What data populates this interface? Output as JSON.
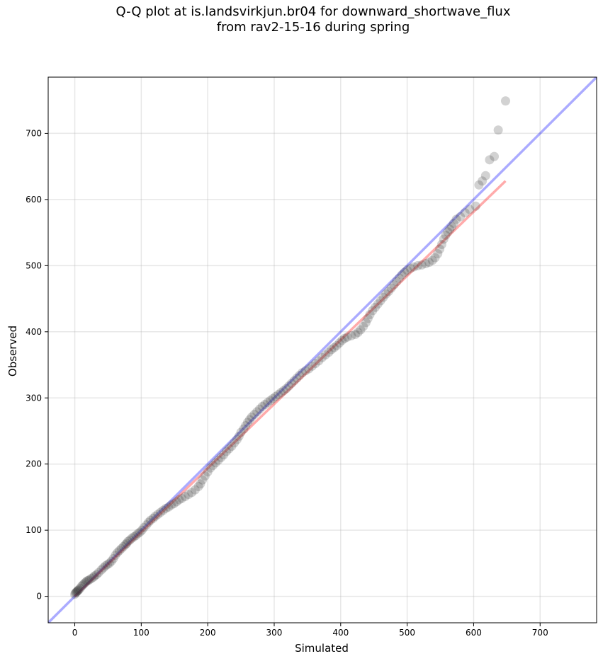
{
  "chart_data": {
    "type": "scatter",
    "title_lines": [
      "Q-Q plot at is.landsvirkjun.br04 for downward_shortwave_flux",
      "from rav2-15-16 during spring"
    ],
    "xlabel": "Simulated",
    "ylabel": "Observed",
    "xlim": [
      -40,
      785
    ],
    "ylim": [
      -40,
      785
    ],
    "xticks": [
      0,
      100,
      200,
      300,
      400,
      500,
      600,
      700
    ],
    "yticks": [
      0,
      100,
      200,
      300,
      400,
      500,
      600,
      700
    ],
    "grid": true,
    "reference_line": {
      "name": "1:1",
      "color": "#0000ff",
      "x": [
        -40,
        785
      ],
      "y": [
        -40,
        785
      ]
    },
    "fit_line": {
      "color": "#ff0000",
      "x": [
        0,
        648
      ],
      "y": [
        0,
        628
      ]
    },
    "point_color": "#333333",
    "points": [
      [
        0,
        3
      ],
      [
        1,
        5
      ],
      [
        2,
        6
      ],
      [
        3,
        7
      ],
      [
        4,
        8
      ],
      [
        5,
        9
      ],
      [
        6,
        10
      ],
      [
        8,
        12
      ],
      [
        10,
        15
      ],
      [
        12,
        17
      ],
      [
        14,
        19
      ],
      [
        16,
        21
      ],
      [
        18,
        23
      ],
      [
        20,
        24
      ],
      [
        22,
        25
      ],
      [
        25,
        27
      ],
      [
        28,
        29
      ],
      [
        30,
        31
      ],
      [
        33,
        33
      ],
      [
        36,
        36
      ],
      [
        40,
        40
      ],
      [
        43,
        43
      ],
      [
        46,
        46
      ],
      [
        49,
        48
      ],
      [
        52,
        50
      ],
      [
        55,
        53
      ],
      [
        58,
        57
      ],
      [
        61,
        62
      ],
      [
        64,
        66
      ],
      [
        67,
        69
      ],
      [
        70,
        72
      ],
      [
        73,
        75
      ],
      [
        76,
        78
      ],
      [
        78,
        80
      ],
      [
        80,
        83
      ],
      [
        83,
        85
      ],
      [
        86,
        88
      ],
      [
        89,
        90
      ],
      [
        92,
        92
      ],
      [
        95,
        95
      ],
      [
        98,
        97
      ],
      [
        101,
        100
      ],
      [
        104,
        104
      ],
      [
        108,
        108
      ],
      [
        111,
        112
      ],
      [
        114,
        115
      ],
      [
        118,
        118
      ],
      [
        121,
        121
      ],
      [
        125,
        124
      ],
      [
        129,
        127
      ],
      [
        133,
        130
      ],
      [
        137,
        133
      ],
      [
        141,
        135
      ],
      [
        145,
        138
      ],
      [
        149,
        140
      ],
      [
        153,
        143
      ],
      [
        157,
        146
      ],
      [
        161,
        148
      ],
      [
        166,
        151
      ],
      [
        171,
        154
      ],
      [
        176,
        157
      ],
      [
        181,
        161
      ],
      [
        186,
        166
      ],
      [
        189,
        170
      ],
      [
        192,
        176
      ],
      [
        196,
        182
      ],
      [
        200,
        188
      ],
      [
        204,
        194
      ],
      [
        208,
        198
      ],
      [
        212,
        202
      ],
      [
        216,
        206
      ],
      [
        220,
        210
      ],
      [
        224,
        214
      ],
      [
        228,
        219
      ],
      [
        232,
        223
      ],
      [
        236,
        227
      ],
      [
        240,
        232
      ],
      [
        244,
        237
      ],
      [
        247,
        242
      ],
      [
        250,
        248
      ],
      [
        254,
        253
      ],
      [
        257,
        258
      ],
      [
        260,
        263
      ],
      [
        263,
        267
      ],
      [
        266,
        271
      ],
      [
        270,
        275
      ],
      [
        274,
        279
      ],
      [
        278,
        283
      ],
      [
        282,
        287
      ],
      [
        286,
        290
      ],
      [
        290,
        293
      ],
      [
        294,
        296
      ],
      [
        298,
        299
      ],
      [
        302,
        302
      ],
      [
        306,
        305
      ],
      [
        310,
        308
      ],
      [
        314,
        311
      ],
      [
        318,
        314
      ],
      [
        322,
        318
      ],
      [
        326,
        322
      ],
      [
        330,
        326
      ],
      [
        334,
        330
      ],
      [
        338,
        334
      ],
      [
        342,
        338
      ],
      [
        347,
        341
      ],
      [
        352,
        344
      ],
      [
        357,
        348
      ],
      [
        362,
        352
      ],
      [
        367,
        356
      ],
      [
        372,
        361
      ],
      [
        377,
        365
      ],
      [
        382,
        369
      ],
      [
        386,
        373
      ],
      [
        390,
        376
      ],
      [
        394,
        379
      ],
      [
        398,
        383
      ],
      [
        402,
        387
      ],
      [
        406,
        390
      ],
      [
        410,
        392
      ],
      [
        416,
        394
      ],
      [
        422,
        396
      ],
      [
        426,
        399
      ],
      [
        430,
        403
      ],
      [
        434,
        408
      ],
      [
        438,
        414
      ],
      [
        441,
        420
      ],
      [
        444,
        426
      ],
      [
        448,
        432
      ],
      [
        452,
        437
      ],
      [
        456,
        442
      ],
      [
        460,
        447
      ],
      [
        464,
        452
      ],
      [
        468,
        457
      ],
      [
        472,
        461
      ],
      [
        476,
        466
      ],
      [
        480,
        471
      ],
      [
        484,
        476
      ],
      [
        488,
        481
      ],
      [
        492,
        486
      ],
      [
        496,
        490
      ],
      [
        500,
        493
      ],
      [
        505,
        496
      ],
      [
        510,
        498
      ],
      [
        516,
        500
      ],
      [
        522,
        501
      ],
      [
        528,
        503
      ],
      [
        533,
        505
      ],
      [
        538,
        508
      ],
      [
        542,
        512
      ],
      [
        546,
        518
      ],
      [
        549,
        525
      ],
      [
        552,
        532
      ],
      [
        555,
        540
      ],
      [
        558,
        546
      ],
      [
        561,
        551
      ],
      [
        564,
        555
      ],
      [
        567,
        559
      ],
      [
        570,
        564
      ],
      [
        574,
        570
      ],
      [
        580,
        574
      ],
      [
        587,
        580
      ],
      [
        594,
        585
      ],
      [
        603,
        590
      ],
      [
        608,
        622
      ],
      [
        613,
        628
      ],
      [
        618,
        636
      ],
      [
        624,
        660
      ],
      [
        631,
        665
      ],
      [
        637,
        705
      ],
      [
        648,
        749
      ]
    ]
  }
}
